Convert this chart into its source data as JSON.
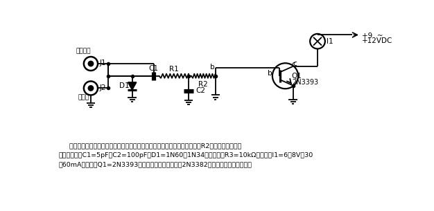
{
  "background_color": "#ffffff",
  "line_color": "#000000",
  "line_width": 1.3,
  "caption_line1": "    指示灯亮度变化与被调制的射频信号合拍。发射机（已调制）通电后，调节R2，直到灯光的闪烁",
  "caption_line2": "与调制合拍。C1=5pF，C2=100pF，D1=1N60或1N34（锗管），R3=10kΩ电位器，I1=6～8V，30",
  "caption_line3": "～60mA白炽灯，Q1=2N3393（为了提高灵敏度，可用2N3382或其他高增益晶体管）。",
  "label_J1": "J1",
  "label_J2": "J2",
  "label_receiver": "至接收机",
  "label_antenna": "至天线",
  "label_C1": "C1",
  "label_R1": "R1",
  "label_D1": "D1",
  "label_C2": "C2",
  "label_R2": "R2",
  "label_Q1": "Q1",
  "label_Q1_part": "2N3393",
  "label_I1": "I1",
  "label_b": "b",
  "label_c": "c",
  "label_power1": "+9  ~",
  "label_power2": "+12VDC"
}
